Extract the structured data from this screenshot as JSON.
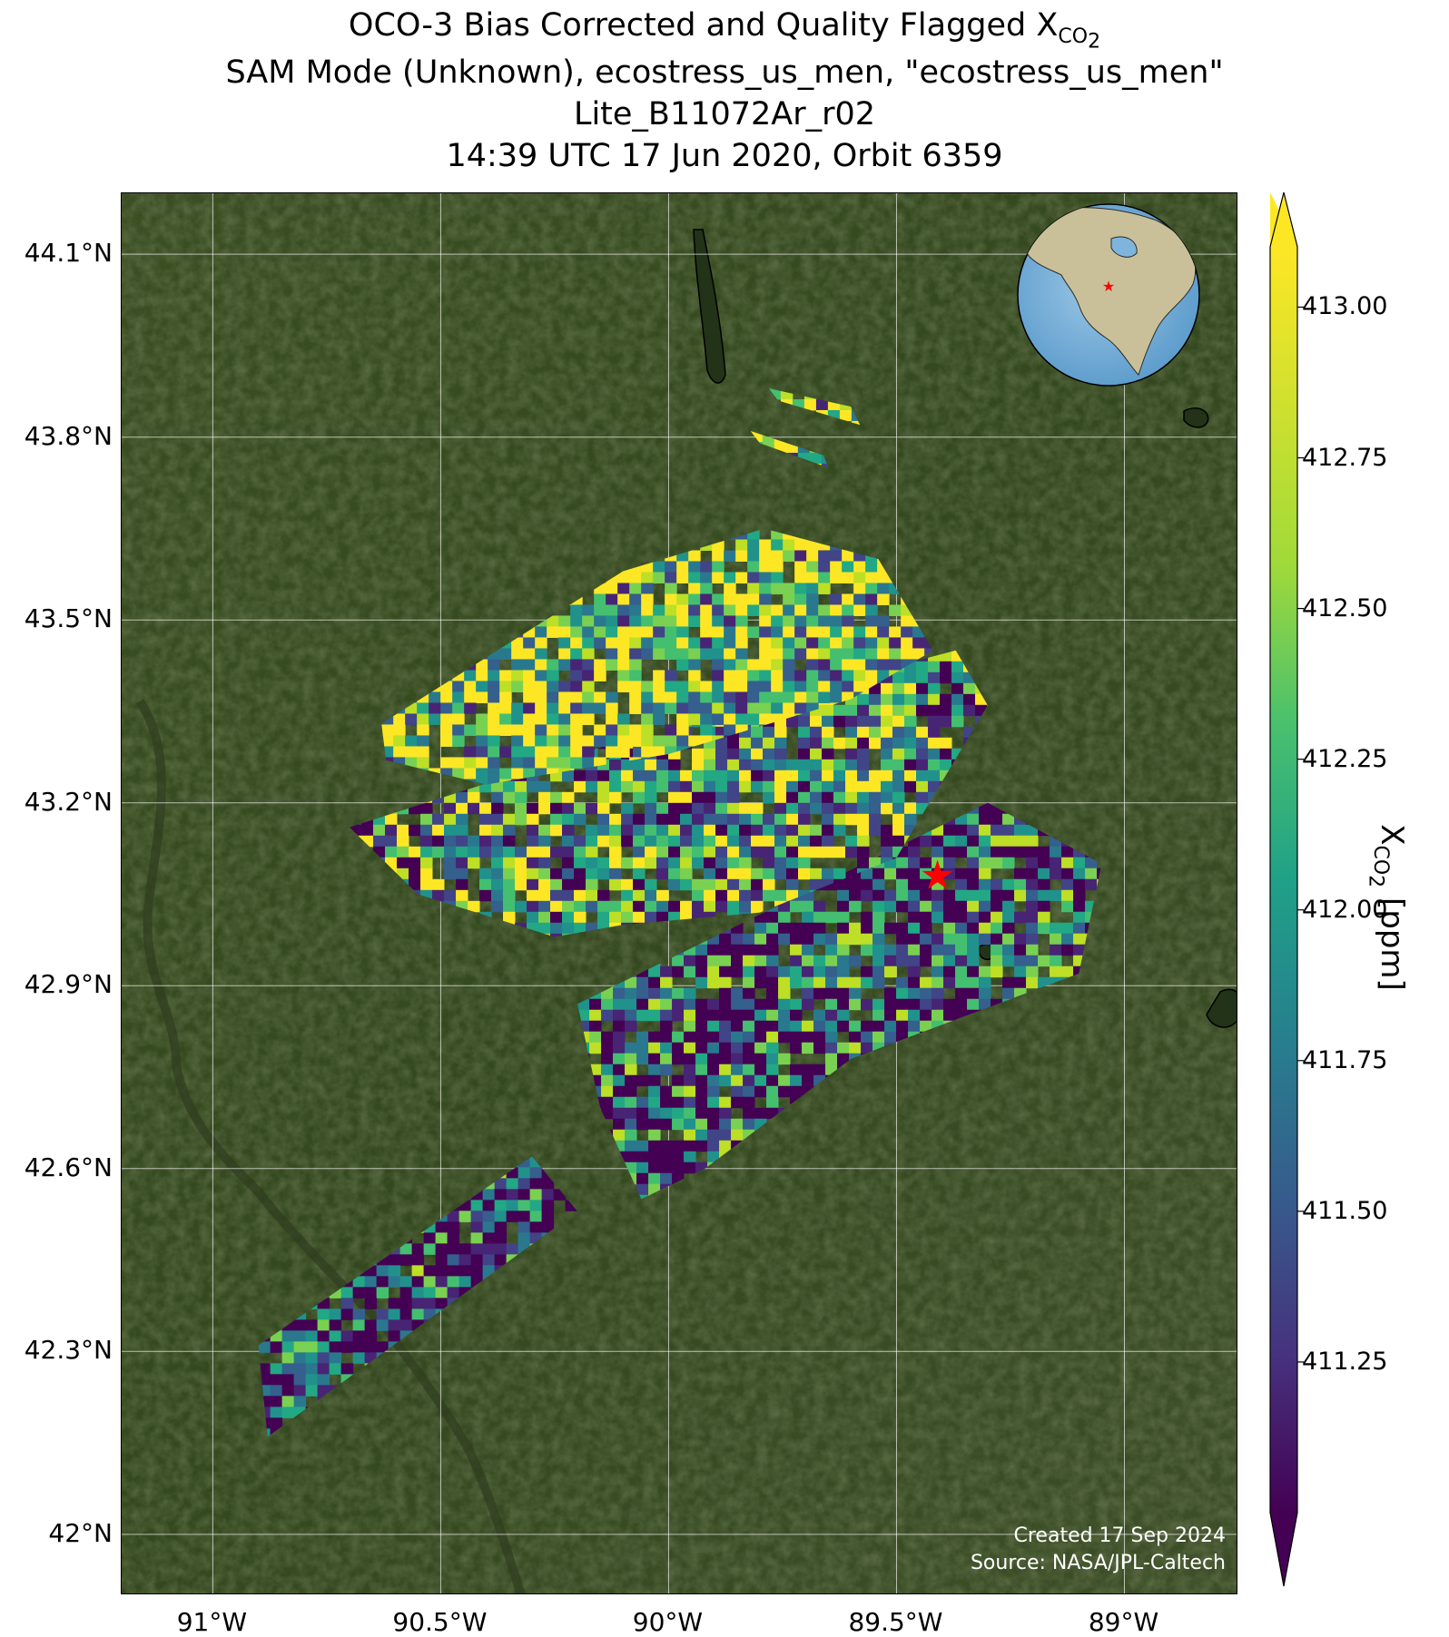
{
  "title": {
    "line1_prefix": "OCO-3 Bias Corrected and Quality Flagged X",
    "line1_sub": "CO",
    "line1_subsub": "2",
    "line2": "SAM Mode (Unknown), ecostress_us_men, \"ecostress_us_men\"",
    "line3": "Lite_B11072Ar_r02",
    "line4": "14:39 UTC 17 Jun 2020, Orbit 6359"
  },
  "map": {
    "lon_range": [
      -91.2,
      -88.75
    ],
    "lat_range": [
      41.9,
      44.2
    ],
    "lon_ticks": [
      {
        "value": -91.0,
        "label": "91°W"
      },
      {
        "value": -90.5,
        "label": "90.5°W"
      },
      {
        "value": -90.0,
        "label": "90°W"
      },
      {
        "value": -89.5,
        "label": "89.5°W"
      },
      {
        "value": -89.0,
        "label": "89°W"
      }
    ],
    "lat_ticks": [
      {
        "value": 44.1,
        "label": "44.1°N"
      },
      {
        "value": 43.8,
        "label": "43.8°N"
      },
      {
        "value": 43.5,
        "label": "43.5°N"
      },
      {
        "value": 43.2,
        "label": "43.2°N"
      },
      {
        "value": 42.9,
        "label": "42.9°N"
      },
      {
        "value": 42.6,
        "label": "42.6°N"
      },
      {
        "value": 42.3,
        "label": "42.3°N"
      },
      {
        "value": 42.0,
        "label": "42°N"
      }
    ],
    "target_marker": {
      "lon": -89.41,
      "lat": 43.08,
      "color": "#ff0000",
      "shape": "star"
    },
    "grid": true,
    "basemap": "satellite imagery",
    "inset_globe": {
      "placement": "top-right",
      "marker_color": "#ff0000",
      "marker_shape": "star"
    }
  },
  "chart_data": {
    "type": "heatmap",
    "variable": "XCO2",
    "units": "ppm",
    "colormap": "viridis",
    "vmin": 411.0,
    "vmax": 413.1,
    "swaths": [
      {
        "corners": [
          [
            -90.9,
            42.31
          ],
          [
            -90.3,
            42.62
          ],
          [
            -90.2,
            42.53
          ],
          [
            -90.88,
            42.16
          ]
        ]
      },
      {
        "corners": [
          [
            -90.2,
            42.87
          ],
          [
            -89.3,
            43.2
          ],
          [
            -89.05,
            43.1
          ],
          [
            -89.1,
            42.92
          ],
          [
            -89.6,
            42.78
          ],
          [
            -89.92,
            42.6
          ],
          [
            -90.06,
            42.55
          ],
          [
            -90.15,
            42.7
          ]
        ]
      },
      {
        "corners": [
          [
            -90.7,
            43.16
          ],
          [
            -90.24,
            43.27
          ],
          [
            -89.98,
            43.33
          ],
          [
            -89.37,
            43.45
          ],
          [
            -89.3,
            43.36
          ],
          [
            -89.5,
            43.11
          ],
          [
            -89.8,
            43.02
          ],
          [
            -90.1,
            43.0
          ],
          [
            -90.25,
            42.98
          ],
          [
            -90.55,
            43.05
          ]
        ]
      },
      {
        "corners": [
          [
            -90.63,
            43.33
          ],
          [
            -90.1,
            43.58
          ],
          [
            -89.79,
            43.65
          ],
          [
            -89.54,
            43.6
          ],
          [
            -89.42,
            43.45
          ],
          [
            -89.6,
            43.37
          ],
          [
            -90.0,
            43.28
          ],
          [
            -90.4,
            43.23
          ],
          [
            -90.62,
            43.27
          ]
        ]
      },
      {
        "corners": [
          [
            -89.78,
            43.88
          ],
          [
            -89.6,
            43.85
          ],
          [
            -89.58,
            43.82
          ],
          [
            -89.76,
            43.86
          ]
        ]
      },
      {
        "corners": [
          [
            -89.82,
            43.81
          ],
          [
            -89.66,
            43.77
          ],
          [
            -89.65,
            43.75
          ],
          [
            -89.8,
            43.79
          ]
        ]
      }
    ],
    "colorbar": {
      "ticks": [
        413.0,
        412.75,
        412.5,
        412.25,
        412.0,
        411.75,
        411.5,
        411.25
      ],
      "tick_labels": [
        "413.00",
        "412.75",
        "412.50",
        "412.25",
        "412.00",
        "411.75",
        "411.50",
        "411.25"
      ],
      "extend": "both",
      "label_prefix": "X",
      "label_sub": "CO",
      "label_subsub": "2",
      "label_suffix": " [ppm]"
    }
  },
  "credits": {
    "created": "Created 17 Sep 2024",
    "source": "Source: NASA/JPL-Caltech"
  }
}
